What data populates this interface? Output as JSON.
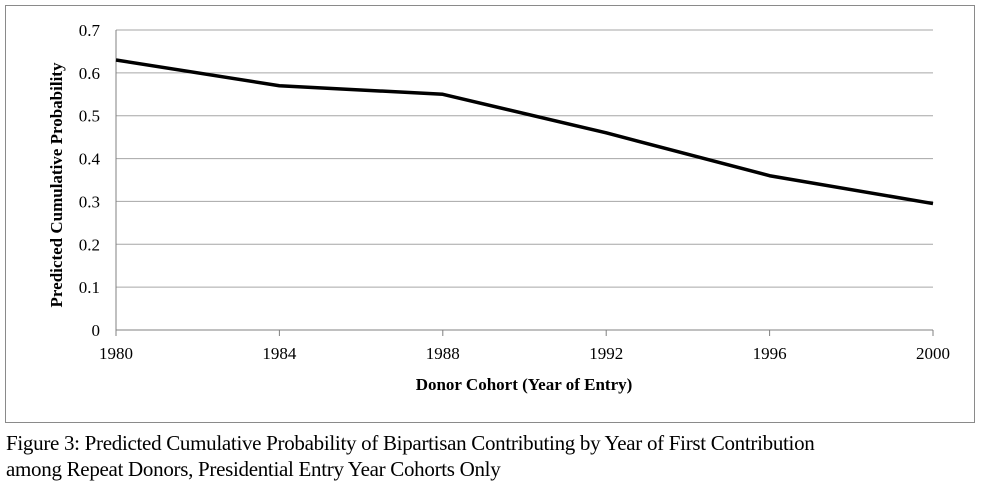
{
  "chart_data": {
    "type": "line",
    "title": "",
    "xlabel": "Donor Cohort (Year of Entry)",
    "ylabel": "Predicted Cumulative Probability",
    "x": [
      1980,
      1984,
      1988,
      1992,
      1996,
      2000
    ],
    "series": [
      {
        "values": [
          0.63,
          0.57,
          0.55,
          0.46,
          0.36,
          0.295
        ],
        "color": "#000000"
      }
    ],
    "xticks": [
      "1980",
      "1984",
      "1988",
      "1992",
      "1996",
      "2000"
    ],
    "yticks": [
      "0",
      "0.1",
      "0.2",
      "0.3",
      "0.4",
      "0.5",
      "0.6",
      "0.7"
    ],
    "xlim": [
      1980,
      2000
    ],
    "ylim": [
      0,
      0.7
    ],
    "grid": "horizontal",
    "legend": "none"
  },
  "caption": {
    "line1": "Figure 3: Predicted Cumulative Probability of Bipartisan Contributing by Year of First Contribution",
    "line2": "among Repeat Donors, Presidential Entry Year Cohorts Only"
  },
  "colors": {
    "gridline": "#a6a6a6",
    "axis": "#808080",
    "line": "#000000",
    "frame": "#8a8a8a"
  }
}
